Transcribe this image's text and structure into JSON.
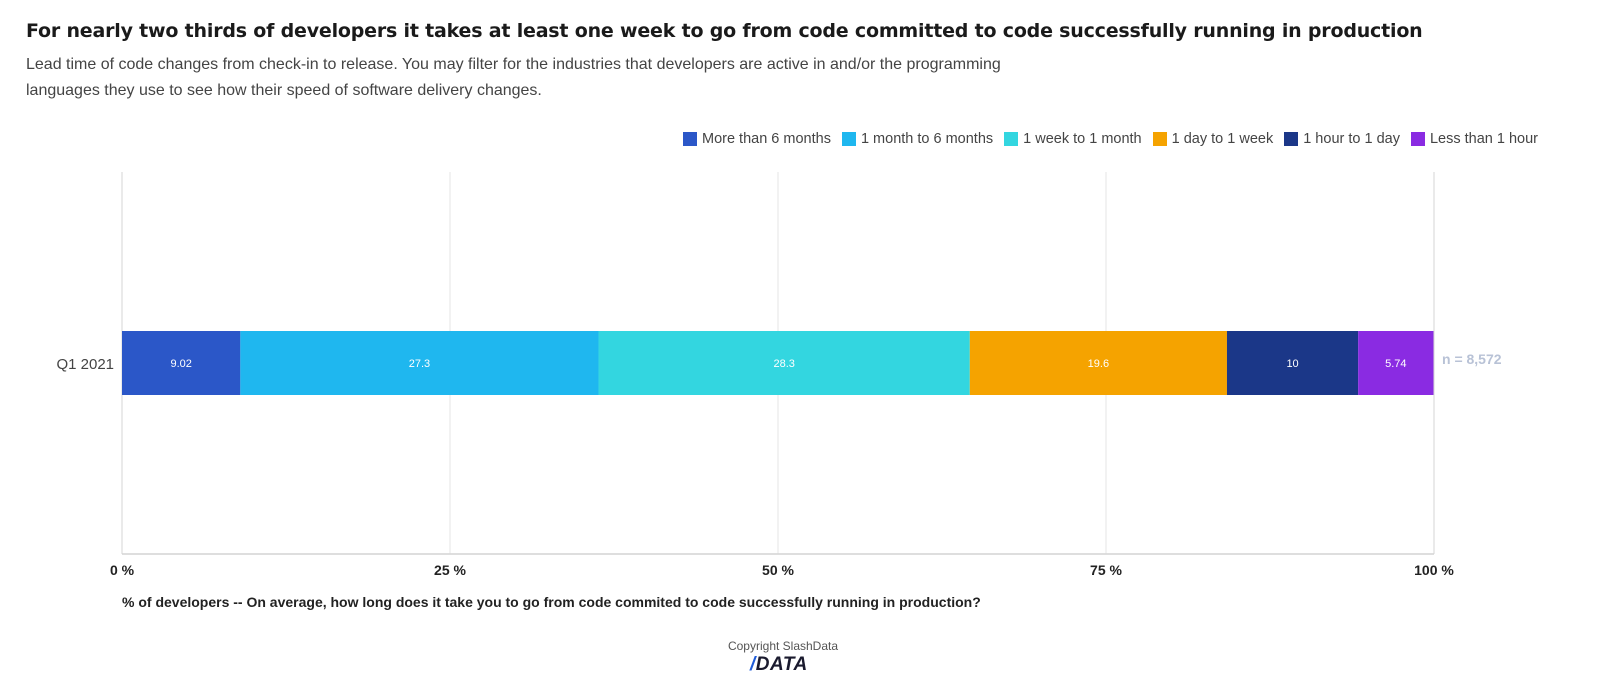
{
  "header": {
    "title": "For nearly two thirds of developers it takes at least one week to go from code committed to code successfully running in production",
    "subtitle": "Lead time of code changes from check-in to release. You may filter for the industries that developers are active in and/or the programming languages they use to see how their speed of software delivery changes."
  },
  "chart_data": {
    "type": "bar",
    "orientation": "horizontal",
    "stacked": true,
    "categories": [
      "Q1 2021"
    ],
    "series": [
      {
        "name": "More than 6 months",
        "values": [
          9.02
        ],
        "color": "#2b57c8"
      },
      {
        "name": "1 month to 6 months",
        "values": [
          27.3
        ],
        "color": "#1fb7ef"
      },
      {
        "name": "1 week to 1 month",
        "values": [
          28.3
        ],
        "color": "#33d6e0"
      },
      {
        "name": "1 day to 1 week",
        "values": [
          19.6
        ],
        "color": "#f5a300"
      },
      {
        "name": "1 hour to 1 day",
        "values": [
          10
        ],
        "color": "#1b3788"
      },
      {
        "name": "Less than 1 hour",
        "values": [
          5.74
        ],
        "color": "#8a2be2"
      }
    ],
    "data_labels": [
      "9.02",
      "27.3",
      "28.3",
      "19.6",
      "10",
      "5.74"
    ],
    "xlim": [
      0,
      100
    ],
    "xticks": [
      "0 %",
      "25 %",
      "50 %",
      "75 %",
      "100 %"
    ],
    "xlabel": "% of developers -- On average, how long does it take you to go from code commited to code successfully running in production?",
    "sample_label": "n = 8,572",
    "legend_position": "top-right",
    "grid": true
  },
  "footer": {
    "copyright": "Copyright SlashData",
    "logo_slash": "/",
    "logo_text": "DATA"
  }
}
